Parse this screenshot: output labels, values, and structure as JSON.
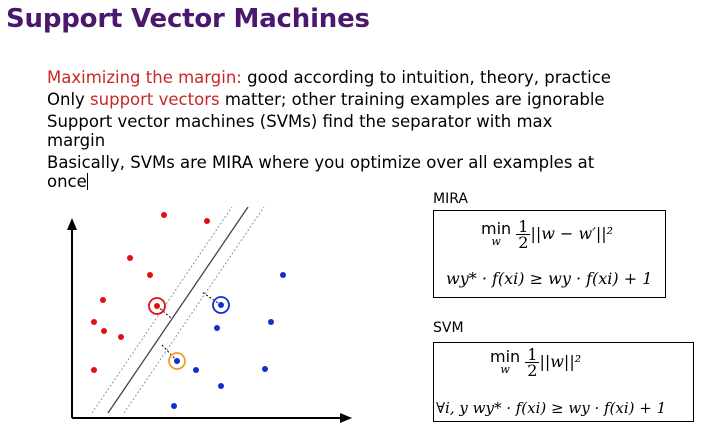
{
  "slide": {
    "title": "Support Vector Machines",
    "bullets": [
      {
        "highlight": "Maximizing the margin:",
        "rest": " good according to intuition, theory, practice"
      },
      {
        "prefix": "Only ",
        "highlight": "support vectors",
        "rest": " matter; other training examples are ignorable"
      },
      {
        "text": "Support vector machines (SVMs) find the separator with max margin"
      },
      {
        "text": "Basically, SVMs are MIRA where you optimize over all examples at once"
      }
    ]
  },
  "mira": {
    "label": "MIRA",
    "min_op": "min",
    "min_sub": "w",
    "frac_num": "1",
    "frac_den": "2",
    "objective": "||w − w′||²",
    "constraint": "w_{y*} · f(x_i) ≥ w_y · f(x_i) + 1",
    "constraint_text": "wy* · f(xi) ≥ wy · f(xi) + 1"
  },
  "svm": {
    "label": "SVM",
    "min_op": "min",
    "min_sub": "w",
    "frac_num": "1",
    "frac_den": "2",
    "objective": "||w||²",
    "constraint_text": "∀i, y wy* · f(xi) ≥ wy · f(xi) + 1"
  },
  "colors": {
    "title": "#4b1870",
    "highlight": "#c62828",
    "class_red": "#e01010",
    "class_blue": "#1030d0",
    "support_orange": "#f0a020"
  }
}
